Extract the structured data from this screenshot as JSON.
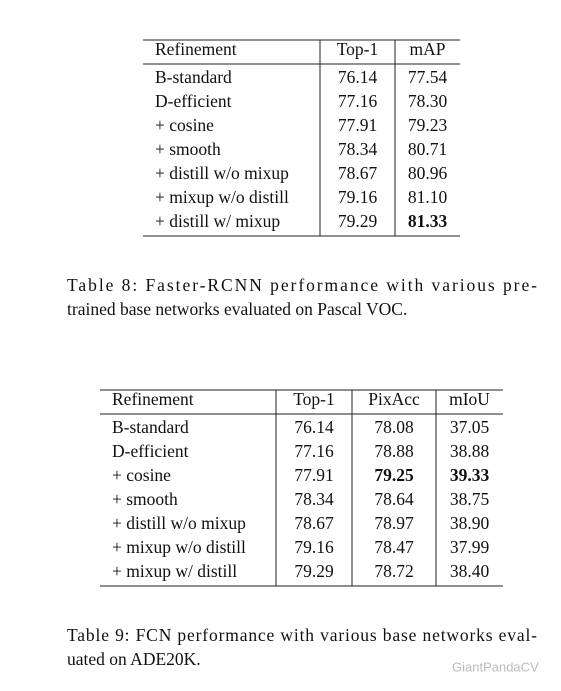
{
  "tables": [
    {
      "header": [
        "Refinement",
        "Top-1",
        "mAP"
      ],
      "rows": [
        [
          "B-standard",
          "76.14",
          "77.54"
        ],
        [
          "D-efficient",
          "77.16",
          "78.30"
        ],
        [
          "+ cosine",
          "77.91",
          "79.23"
        ],
        [
          "+ smooth",
          "78.34",
          "80.71"
        ],
        [
          "+ distill w/o mixup",
          "78.67",
          "80.96"
        ],
        [
          "+ mixup w/o distill",
          "79.16",
          "81.10"
        ],
        [
          "+ distill w/ mixup",
          "79.29",
          "81.33"
        ]
      ],
      "caption": [
        "Table 8:  Faster-RCNN performance with various pre-",
        "trained base networks evaluated on Pascal VOC."
      ]
    },
    {
      "header": [
        "Refinement",
        "Top-1",
        "PixAcc",
        "mIoU"
      ],
      "rows": [
        [
          "B-standard",
          "76.14",
          "78.08",
          "37.05"
        ],
        [
          "D-efficient",
          "77.16",
          "78.88",
          "38.88"
        ],
        [
          "+ cosine",
          "77.91",
          "79.25",
          "39.33"
        ],
        [
          "+ smooth",
          "78.34",
          "78.64",
          "38.75"
        ],
        [
          "+ distill w/o mixup",
          "78.67",
          "78.97",
          "38.90"
        ],
        [
          "+ mixup w/o distill",
          "79.16",
          "78.47",
          "37.99"
        ],
        [
          "+ mixup w/ distill",
          "79.29",
          "78.72",
          "38.40"
        ]
      ],
      "caption": [
        "Table 9: FCN performance with various base networks eval-",
        "uated on ADE20K."
      ]
    }
  ],
  "watermark": "GiantPandaCV"
}
